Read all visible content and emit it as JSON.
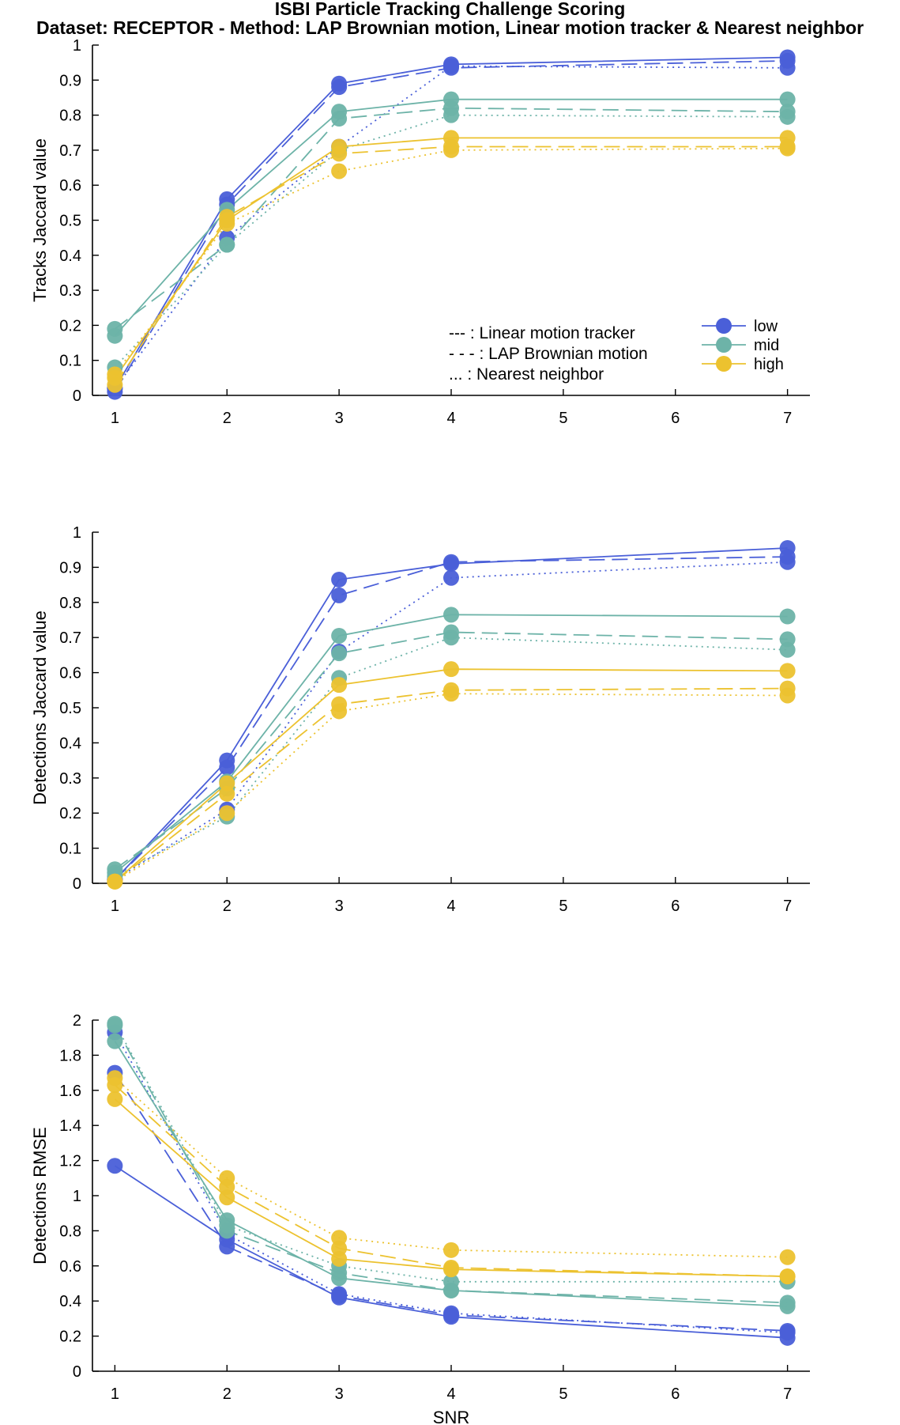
{
  "title": "ISBI Particle Tracking Challenge Scoring",
  "subtitle": "Dataset: RECEPTOR - Method: LAP Brownian motion, Linear motion tracker & Nearest neighbor",
  "colors": {
    "low": "#4a5fd8",
    "mid": "#6db3a8",
    "high": "#ecc22f",
    "axis": "#000000"
  },
  "legend": {
    "placement": "bottom-right of top panel",
    "methods": [
      "--- : Linear motion tracker",
      "- - - : LAP Brownian motion",
      "... : Nearest neighbor"
    ],
    "levels": [
      "low",
      "mid",
      "high"
    ]
  },
  "chart_data": [
    {
      "type": "line",
      "ylabel": "Tracks Jaccard value",
      "xlabel": "",
      "x": [
        1,
        2,
        3,
        4,
        7
      ],
      "xticks": [
        1,
        2,
        3,
        4,
        5,
        6,
        7
      ],
      "xlim": [
        0.8,
        7.2
      ],
      "ylim": [
        0,
        1
      ],
      "yticks": [
        "0",
        "0.1",
        "0.2",
        "0.3",
        "0.4",
        "0.5",
        "0.6",
        "0.7",
        "0.8",
        "0.9",
        "1"
      ],
      "grid": false,
      "series": [
        {
          "level": "low",
          "method": "Linear motion tracker",
          "values": [
            0.02,
            0.56,
            0.89,
            0.945,
            0.965
          ]
        },
        {
          "level": "low",
          "method": "LAP Brownian motion",
          "values": [
            0.01,
            0.545,
            0.88,
            0.935,
            0.955
          ]
        },
        {
          "level": "low",
          "method": "Nearest neighbor",
          "values": [
            0.02,
            0.45,
            0.71,
            0.94,
            0.935
          ]
        },
        {
          "level": "mid",
          "method": "Linear motion tracker",
          "values": [
            0.17,
            0.53,
            0.81,
            0.845,
            0.845
          ]
        },
        {
          "level": "mid",
          "method": "LAP Brownian motion",
          "values": [
            0.19,
            0.43,
            0.79,
            0.82,
            0.81
          ]
        },
        {
          "level": "mid",
          "method": "Nearest neighbor",
          "values": [
            0.08,
            0.43,
            0.7,
            0.8,
            0.795
          ]
        },
        {
          "level": "high",
          "method": "Linear motion tracker",
          "values": [
            0.05,
            0.5,
            0.71,
            0.735,
            0.735
          ]
        },
        {
          "level": "high",
          "method": "LAP Brownian motion",
          "values": [
            0.03,
            0.51,
            0.69,
            0.71,
            0.71
          ]
        },
        {
          "level": "high",
          "method": "Nearest neighbor",
          "values": [
            0.06,
            0.49,
            0.64,
            0.7,
            0.705
          ]
        }
      ]
    },
    {
      "type": "line",
      "ylabel": "Detections Jaccard value",
      "xlabel": "",
      "x": [
        1,
        2,
        3,
        4,
        7
      ],
      "xticks": [
        1,
        2,
        3,
        4,
        5,
        6,
        7
      ],
      "xlim": [
        0.8,
        7.2
      ],
      "ylim": [
        0,
        1
      ],
      "yticks": [
        "0",
        "0.1",
        "0.2",
        "0.3",
        "0.4",
        "0.5",
        "0.6",
        "0.7",
        "0.8",
        "0.9",
        "1"
      ],
      "grid": false,
      "series": [
        {
          "level": "low",
          "method": "Linear motion tracker",
          "values": [
            0.01,
            0.35,
            0.865,
            0.91,
            0.955
          ]
        },
        {
          "level": "low",
          "method": "LAP Brownian motion",
          "values": [
            0.01,
            0.33,
            0.82,
            0.915,
            0.93
          ]
        },
        {
          "level": "low",
          "method": "Nearest neighbor",
          "values": [
            0.01,
            0.21,
            0.66,
            0.87,
            0.915
          ]
        },
        {
          "level": "mid",
          "method": "Linear motion tracker",
          "values": [
            0.03,
            0.29,
            0.705,
            0.765,
            0.76
          ]
        },
        {
          "level": "mid",
          "method": "LAP Brownian motion",
          "values": [
            0.04,
            0.27,
            0.655,
            0.715,
            0.695
          ]
        },
        {
          "level": "mid",
          "method": "Nearest neighbor",
          "values": [
            0.02,
            0.19,
            0.585,
            0.7,
            0.665
          ]
        },
        {
          "level": "high",
          "method": "Linear motion tracker",
          "values": [
            0.005,
            0.285,
            0.565,
            0.61,
            0.605
          ]
        },
        {
          "level": "high",
          "method": "LAP Brownian motion",
          "values": [
            0.005,
            0.255,
            0.51,
            0.55,
            0.555
          ]
        },
        {
          "level": "high",
          "method": "Nearest neighbor",
          "values": [
            0.005,
            0.2,
            0.49,
            0.54,
            0.535
          ]
        }
      ]
    },
    {
      "type": "line",
      "ylabel": "Detections RMSE",
      "xlabel": "SNR",
      "x": [
        1,
        2,
        3,
        4,
        7
      ],
      "xticks": [
        1,
        2,
        3,
        4,
        5,
        6,
        7
      ],
      "xlim": [
        0.8,
        7.2
      ],
      "ylim": [
        0,
        2
      ],
      "yticks": [
        "0",
        "0.2",
        "0.4",
        "0.6",
        "0.8",
        "1",
        "1.2",
        "1.4",
        "1.6",
        "1.8",
        "2"
      ],
      "grid": false,
      "series": [
        {
          "level": "low",
          "method": "Linear motion tracker",
          "values": [
            1.17,
            0.75,
            0.42,
            0.31,
            0.19
          ]
        },
        {
          "level": "low",
          "method": "LAP Brownian motion",
          "values": [
            1.7,
            0.71,
            0.43,
            0.32,
            0.23
          ]
        },
        {
          "level": "low",
          "method": "Nearest neighbor",
          "values": [
            1.93,
            0.78,
            0.44,
            0.33,
            0.22
          ]
        },
        {
          "level": "mid",
          "method": "Linear motion tracker",
          "values": [
            1.88,
            0.86,
            0.53,
            0.46,
            0.37
          ]
        },
        {
          "level": "mid",
          "method": "LAP Brownian motion",
          "values": [
            1.97,
            0.8,
            0.56,
            0.46,
            0.39
          ]
        },
        {
          "level": "mid",
          "method": "Nearest neighbor",
          "values": [
            1.98,
            0.83,
            0.6,
            0.51,
            0.51
          ]
        },
        {
          "level": "high",
          "method": "Linear motion tracker",
          "values": [
            1.55,
            0.99,
            0.64,
            0.58,
            0.54
          ]
        },
        {
          "level": "high",
          "method": "LAP Brownian motion",
          "values": [
            1.63,
            1.05,
            0.7,
            0.59,
            0.54
          ]
        },
        {
          "level": "high",
          "method": "Nearest neighbor",
          "values": [
            1.67,
            1.1,
            0.76,
            0.69,
            0.65
          ]
        }
      ]
    }
  ]
}
